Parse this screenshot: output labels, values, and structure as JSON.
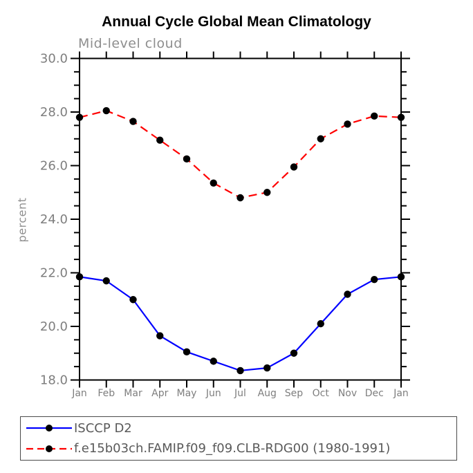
{
  "chart_data": {
    "type": "line",
    "title": "Annual Cycle Global Mean Climatology",
    "subtitle": "Mid-level cloud",
    "ylabel": "percent",
    "xlabel": "",
    "categories": [
      "Jan",
      "Feb",
      "Mar",
      "Apr",
      "May",
      "Jun",
      "Jul",
      "Aug",
      "Sep",
      "Oct",
      "Nov",
      "Dec",
      "Jan"
    ],
    "ylim": [
      18.0,
      30.0
    ],
    "yticks_major": [
      18,
      20,
      22,
      24,
      26,
      28,
      30
    ],
    "ytick_labels": [
      "18.0",
      "20.0",
      "22.0",
      "24.0",
      "26.0",
      "28.0",
      "30.0"
    ],
    "minor_tick_step": 0.5,
    "grid": false,
    "legend_position": "bottom-left",
    "colors": {
      "axis": "#000000",
      "tick_label": "#7e7e7e",
      "subtitle_text": "#8e8e8e",
      "legend_text": "#5a5a5a",
      "legend_border": "#4a4a4a",
      "background": "#ffffff",
      "marker": "#000000",
      "series_blue": "#0000ff",
      "series_red": "#ff0000"
    },
    "series": [
      {
        "name": "ISCCP D2",
        "color": "#0000ff",
        "style": "solid",
        "marker": "circle",
        "marker_color": "#000000",
        "values": [
          21.85,
          21.7,
          21.0,
          19.65,
          19.05,
          18.7,
          18.35,
          18.45,
          19.0,
          20.1,
          21.2,
          21.75,
          21.85
        ]
      },
      {
        "name": "f.e15b03ch.FAMIP.f09_f09.CLB-RDG00 (1980-1991)",
        "color": "#ff0000",
        "style": "dashed",
        "marker": "circle",
        "marker_color": "#000000",
        "values": [
          27.8,
          28.05,
          27.65,
          26.95,
          26.25,
          25.35,
          24.8,
          25.0,
          25.95,
          27.0,
          27.55,
          27.85,
          27.8
        ]
      }
    ]
  }
}
